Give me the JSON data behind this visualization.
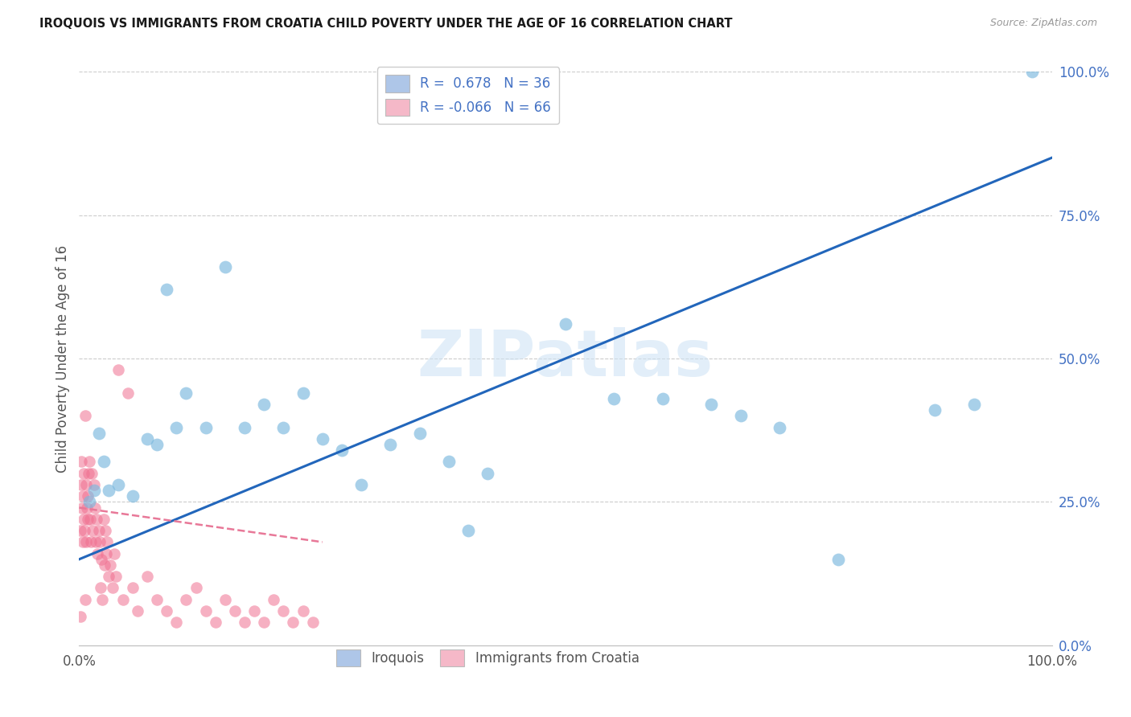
{
  "title": "IROQUOIS VS IMMIGRANTS FROM CROATIA CHILD POVERTY UNDER THE AGE OF 16 CORRELATION CHART",
  "source": "Source: ZipAtlas.com",
  "ylabel": "Child Poverty Under the Age of 16",
  "xlim": [
    0,
    100
  ],
  "ylim": [
    0,
    100
  ],
  "xtick_labels": [
    "0.0%",
    "100.0%"
  ],
  "ytick_labels": [
    "0.0%",
    "25.0%",
    "50.0%",
    "75.0%",
    "100.0%"
  ],
  "ytick_positions": [
    0,
    25,
    50,
    75,
    100
  ],
  "legend1_label": "R =  0.678   N = 36",
  "legend2_label": "R = -0.066   N = 66",
  "legend_color1": "#aec6e8",
  "legend_color2": "#f5b8c8",
  "watermark": "ZIPatlas",
  "iroquois_color": "#7ab8de",
  "croatia_color": "#f07090",
  "trendline_iroquois_color": "#2266bb",
  "trendline_croatia_color": "#e87898",
  "grid_color": "#cccccc",
  "background_color": "#ffffff",
  "footer_label_iroquois": "Iroquois",
  "footer_label_croatia": "Immigrants from Croatia",
  "iroquois_x": [
    1.0,
    1.5,
    2.0,
    2.5,
    3.0,
    4.0,
    5.5,
    7.0,
    8.0,
    9.0,
    10.0,
    11.0,
    13.0,
    15.0,
    17.0,
    19.0,
    21.0,
    23.0,
    25.0,
    27.0,
    29.0,
    32.0,
    35.0,
    38.0,
    40.0,
    42.0,
    50.0,
    55.0,
    60.0,
    65.0,
    68.0,
    72.0,
    78.0,
    88.0,
    92.0,
    98.0
  ],
  "iroquois_y": [
    25.0,
    27.0,
    37.0,
    32.0,
    27.0,
    28.0,
    26.0,
    36.0,
    35.0,
    62.0,
    38.0,
    44.0,
    38.0,
    66.0,
    38.0,
    42.0,
    38.0,
    44.0,
    36.0,
    34.0,
    28.0,
    35.0,
    37.0,
    32.0,
    20.0,
    30.0,
    56.0,
    43.0,
    43.0,
    42.0,
    40.0,
    38.0,
    15.0,
    41.0,
    42.0,
    100.0
  ],
  "croatia_x": [
    0.1,
    0.15,
    0.2,
    0.25,
    0.3,
    0.35,
    0.4,
    0.45,
    0.5,
    0.55,
    0.6,
    0.65,
    0.7,
    0.75,
    0.8,
    0.85,
    0.9,
    0.95,
    1.0,
    1.1,
    1.2,
    1.3,
    1.4,
    1.5,
    1.6,
    1.7,
    1.8,
    1.9,
    2.0,
    2.1,
    2.2,
    2.3,
    2.4,
    2.5,
    2.6,
    2.7,
    2.8,
    2.9,
    3.0,
    3.2,
    3.4,
    3.6,
    3.8,
    4.0,
    4.5,
    5.0,
    5.5,
    6.0,
    7.0,
    8.0,
    9.0,
    10.0,
    11.0,
    12.0,
    13.0,
    14.0,
    15.0,
    16.0,
    17.0,
    18.0,
    19.0,
    20.0,
    21.0,
    22.0,
    23.0,
    24.0
  ],
  "croatia_y": [
    20.0,
    5.0,
    28.0,
    32.0,
    24.0,
    18.0,
    26.0,
    30.0,
    22.0,
    20.0,
    40.0,
    8.0,
    28.0,
    18.0,
    24.0,
    22.0,
    26.0,
    30.0,
    32.0,
    22.0,
    18.0,
    30.0,
    20.0,
    28.0,
    24.0,
    18.0,
    22.0,
    16.0,
    20.0,
    18.0,
    10.0,
    15.0,
    8.0,
    22.0,
    14.0,
    20.0,
    16.0,
    18.0,
    12.0,
    14.0,
    10.0,
    16.0,
    12.0,
    48.0,
    8.0,
    44.0,
    10.0,
    6.0,
    12.0,
    8.0,
    6.0,
    4.0,
    8.0,
    10.0,
    6.0,
    4.0,
    8.0,
    6.0,
    4.0,
    6.0,
    4.0,
    8.0,
    6.0,
    4.0,
    6.0,
    4.0
  ],
  "trendline_iroq_x0": 0,
  "trendline_iroq_y0": 15,
  "trendline_iroq_x1": 100,
  "trendline_iroq_y1": 85,
  "trendline_cro_x0": 0,
  "trendline_cro_y0": 24,
  "trendline_cro_x1": 25,
  "trendline_cro_y1": 18
}
